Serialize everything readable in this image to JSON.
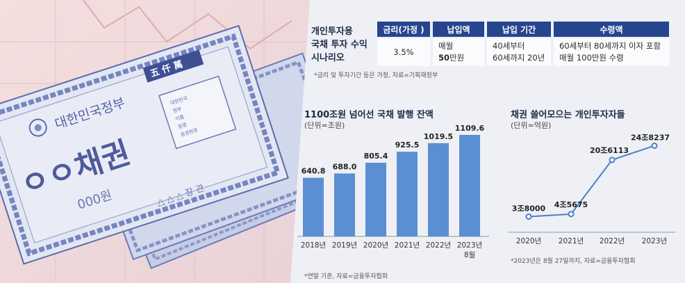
{
  "scenario": {
    "title_lines": [
      "개인투자용",
      "국채 투자 수익",
      "시나리오"
    ],
    "headers": [
      "금리(가정 )",
      "납입액",
      "납입 기간",
      "수령액"
    ],
    "rate": "3.5%",
    "payment_line1": "매월",
    "payment_line2_bold": "50",
    "payment_line2_rest": "만원",
    "period_line1": "40세부터",
    "period_line2": "60세까지 20년",
    "receive_line1": "60세부터 80세까지 이자 포함",
    "receive_line2": "매월 100만원 수령",
    "note": "*금리 및 투자기간 등은 가정, 자료=기획재정부"
  },
  "bond_image": {
    "title": "대한민국정부",
    "name": "ㅇㅇ채권",
    "amount": "000원",
    "stamp": "五 仟 萬",
    "seal": "△ △ △ 장 관",
    "box_lines": [
      "대한민국",
      "정부",
      "이름",
      "증명",
      "증권번호"
    ]
  },
  "colors": {
    "accent": "#27458f",
    "bar": "#5b8fd1",
    "line": "#4a7fc8"
  },
  "chart_data": [
    {
      "type": "bar",
      "title": "1100조원 넘어선 국채 발행 잔액",
      "unit": "(단위=조원)",
      "categories": [
        "2018년",
        "2019년",
        "2020년",
        "2021년",
        "2022년",
        "2023년"
      ],
      "category_sub": [
        "",
        "",
        "",
        "",
        "",
        "8월"
      ],
      "values": [
        640.8,
        688.0,
        805.4,
        925.5,
        1019.5,
        1109.6
      ],
      "value_labels": [
        "640.8",
        "688.0",
        "805.4",
        "925.5",
        "1019.5",
        "1109.6"
      ],
      "note": "*연말 기준, 자료=금융투자협회"
    },
    {
      "type": "line",
      "title": "채권 쓸어모으는 개인투자자들",
      "unit": "(단위=억원)",
      "categories": [
        "2020년",
        "2021년",
        "2022년",
        "2023년"
      ],
      "values": [
        38000,
        45675,
        206113,
        248237
      ],
      "value_labels": [
        "3조8000",
        "4조5675",
        "20조6113",
        "24조8237"
      ],
      "note": "*2023년은 8월 27일까지, 자료=금융투자협회"
    }
  ]
}
